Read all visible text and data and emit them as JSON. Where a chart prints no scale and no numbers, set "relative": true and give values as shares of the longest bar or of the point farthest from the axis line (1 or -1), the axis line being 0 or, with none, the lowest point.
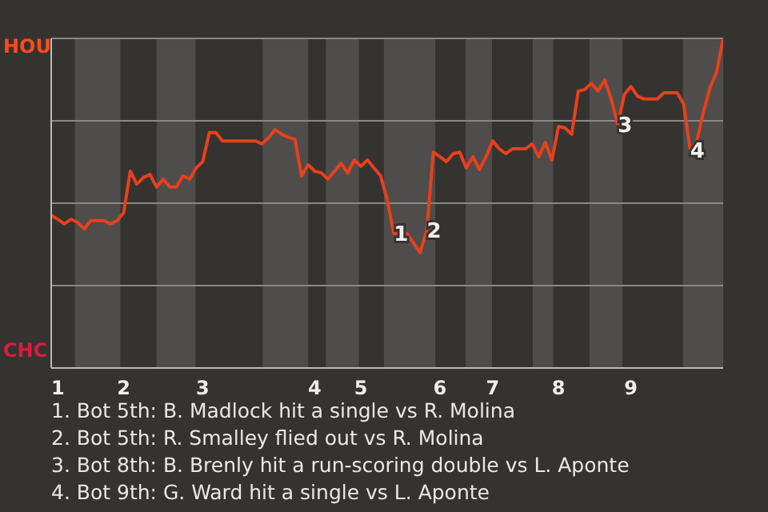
{
  "chart_data": {
    "type": "line",
    "relative": true,
    "categories": [
      null,
      "1",
      null,
      null,
      null,
      null,
      null,
      null,
      null,
      null,
      null,
      "2",
      null,
      null,
      null,
      null,
      null,
      null,
      null,
      null,
      null,
      null,
      null,
      "3",
      null,
      null,
      null,
      null,
      null,
      null,
      null,
      null,
      null,
      null,
      null,
      null,
      null,
      null,
      null,
      null,
      "4",
      null,
      null,
      null,
      null,
      null,
      null,
      "5",
      null,
      null,
      null,
      null,
      null,
      null,
      null,
      null,
      null,
      null,
      null,
      "6",
      null,
      null,
      null,
      null,
      null,
      null,
      null,
      "7",
      null,
      null,
      null,
      null,
      null,
      null,
      null,
      null,
      null,
      "8",
      null,
      null,
      null,
      null,
      null,
      null,
      null,
      null,
      null,
      null,
      "9",
      null,
      null,
      null,
      null,
      null,
      null,
      null,
      null,
      null,
      null,
      null,
      null,
      null,
      null
    ],
    "series": [
      {
        "color": "#e8401c",
        "values": [
          0.464,
          0.451,
          0.437,
          0.451,
          0.442,
          0.422,
          0.447,
          0.447,
          0.447,
          0.437,
          0.447,
          0.471,
          0.597,
          0.558,
          0.578,
          0.587,
          0.549,
          0.573,
          0.549,
          0.549,
          0.583,
          0.573,
          0.607,
          0.626,
          0.714,
          0.714,
          0.689,
          0.689,
          0.689,
          0.689,
          0.689,
          0.689,
          0.68,
          0.699,
          0.723,
          0.709,
          0.7,
          0.694,
          0.583,
          0.617,
          0.597,
          0.592,
          0.573,
          0.597,
          0.621,
          0.592,
          0.631,
          0.612,
          0.631,
          0.607,
          0.583,
          0.51,
          0.408,
          0.408,
          0.408,
          0.379,
          0.35,
          0.417,
          0.655,
          0.641,
          0.626,
          0.65,
          0.655,
          0.607,
          0.641,
          0.602,
          0.641,
          0.689,
          0.665,
          0.65,
          0.665,
          0.665,
          0.665,
          0.68,
          0.641,
          0.684,
          0.631,
          0.733,
          0.728,
          0.709,
          0.84,
          0.845,
          0.864,
          0.84,
          0.874,
          0.816,
          0.738,
          0.83,
          0.854,
          0.825,
          0.816,
          0.816,
          0.816,
          0.835,
          0.835,
          0.835,
          0.801,
          0.66,
          0.689,
          0.777,
          0.85,
          0.898,
          1
        ]
      }
    ],
    "grid": "y",
    "annotations": [
      "HOU",
      "CHC",
      "1. Bot 5th: B. Madlock hit a single vs R. Molina",
      "2. Bot 5th: R. Smalley flied out vs R. Molina",
      "3. Bot 8th: B. Brenly hit a run-scoring double vs L. Aponte",
      "4. Bot 9th: G. Ward hit a single vs L. Aponte",
      {
        "text": "1",
        "y": 0.408
      },
      {
        "text": "2",
        "y": 0.417
      },
      {
        "text": "3",
        "y": 0.738
      },
      {
        "text": "4",
        "y": 0.66
      }
    ]
  }
}
